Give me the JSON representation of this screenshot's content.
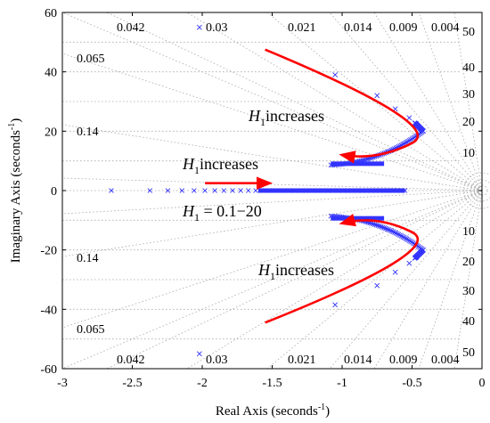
{
  "chart_data": {
    "type": "scatter",
    "title": "",
    "xlabel": "Real Axis (seconds",
    "xlabel_sup": "-1",
    "xlabel_end": ")",
    "ylabel": "Imaginary Axis (seconds",
    "ylabel_sup": "-1",
    "ylabel_end": ")",
    "xlim": [
      -3,
      0
    ],
    "ylim": [
      -60,
      60
    ],
    "xticks": [
      "-3",
      "-2.5",
      "-2",
      "-1.5",
      "-1",
      "-0.5",
      "0"
    ],
    "yticks": [
      "-60",
      "-40",
      "-20",
      "0",
      "20",
      "40",
      "60"
    ],
    "grid": true,
    "grid_type": "s-plane",
    "damping_labels": [
      "0.042",
      "0.03",
      "0.021",
      "0.014",
      "0.009",
      "0.004",
      "0.065",
      "0.14"
    ],
    "frequency_labels": [
      "50",
      "40",
      "30",
      "20",
      "10"
    ],
    "marker_color": "#3333ff",
    "arrow_color": "#ff0000",
    "annotations": [
      {
        "var": "H",
        "sub": "1",
        "text": "increases"
      },
      {
        "var": "H",
        "sub": "1",
        "text": "increases"
      },
      {
        "var": "H",
        "sub": "1",
        "text": "increases"
      },
      {
        "var": "H",
        "sub": "1",
        "text": " = 0.1−20"
      }
    ],
    "series": [
      {
        "points_sparse_upper": [
          [
            -2.02,
            55
          ],
          [
            -1.05,
            39
          ],
          [
            -0.75,
            32
          ],
          [
            -0.62,
            27.5
          ],
          [
            -0.52,
            24.5
          ],
          [
            -0.47,
            22.5
          ]
        ],
        "points_sparse_lower": [
          [
            -2.02,
            -55
          ],
          [
            -1.05,
            -38.5
          ],
          [
            -0.75,
            -32
          ],
          [
            -0.62,
            -27.5
          ],
          [
            -0.52,
            -24.5
          ],
          [
            -0.47,
            -22.5
          ]
        ],
        "real_axis_range": [
          -2.65,
          -0.55
        ]
      }
    ]
  }
}
